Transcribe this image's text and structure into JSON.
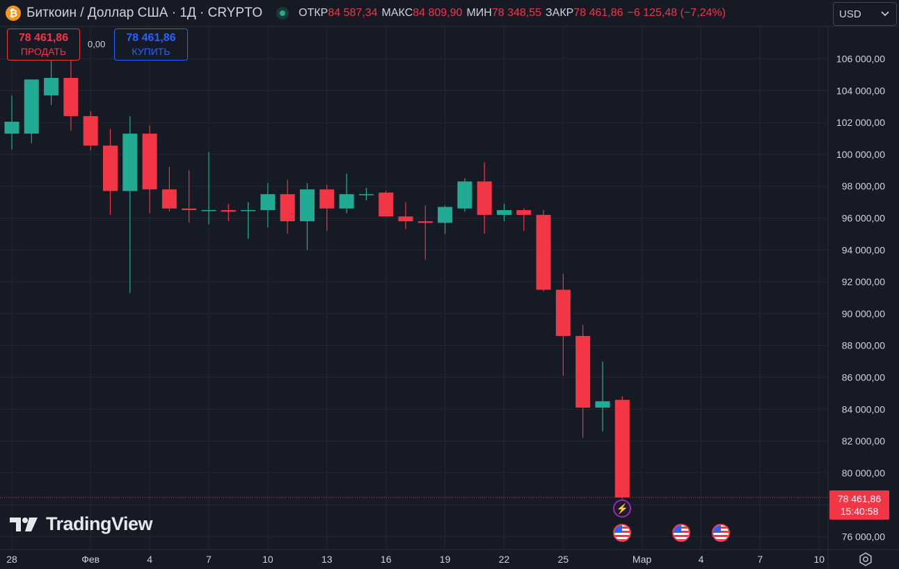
{
  "header": {
    "logo_symbol": "₿",
    "title": "Биткоин / Доллар США · 1Д · CRYPTO",
    "ohlc": {
      "open_label": "ОТКР",
      "open": "84 587,34",
      "high_label": "МАКС",
      "high": "84 809,90",
      "low_label": "МИН",
      "low": "78 348,55",
      "close_label": "ЗАКР",
      "close": "78 461,86",
      "change": "−6 125,48 (−7,24%)"
    }
  },
  "trade": {
    "sell_price": "78 461,86",
    "sell_label": "ПРОДАТЬ",
    "spread": "0,00",
    "buy_price": "78 461,86",
    "buy_label": "КУПИТЬ"
  },
  "currency": {
    "selected": "USD"
  },
  "last_price": {
    "price": "78 461,86",
    "countdown": "15:40:58"
  },
  "watermark": "TradingView",
  "colors": {
    "up": "#22ab94",
    "down": "#f23645",
    "background": "#161a25",
    "grid": "#232734",
    "text": "#d1d4dc"
  },
  "icons": [
    "bitcoin-logo-icon",
    "chevron-down-icon",
    "lightning-icon",
    "us-flag-icon",
    "settings-icon"
  ],
  "chart_data": {
    "type": "candlestick",
    "interval": "1D",
    "ylim": [
      75000,
      107000
    ],
    "y_ticks": [
      76000,
      78000,
      80000,
      82000,
      84000,
      86000,
      88000,
      90000,
      92000,
      94000,
      96000,
      98000,
      100000,
      102000,
      104000,
      106000
    ],
    "y_tick_labels": [
      "76 000,00",
      "78 000,00",
      "80 000,00",
      "82 000,00",
      "84 000,00",
      "86 000,00",
      "88 000,00",
      "90 000,00",
      "92 000,00",
      "94 000,00",
      "96 000,00",
      "98 000,00",
      "100 000,00",
      "102 000,00",
      "104 000,00",
      "106 000,00"
    ],
    "x_ticks": [
      "28",
      "Фев",
      "4",
      "7",
      "10",
      "13",
      "16",
      "19",
      "22",
      "25",
      "Мар",
      "4",
      "7",
      "10"
    ],
    "x_tick_days": [
      0,
      4,
      7,
      10,
      13,
      16,
      19,
      22,
      25,
      28,
      32,
      35,
      38,
      41
    ],
    "last_price": 78461.86,
    "candles": [
      {
        "day": 0,
        "o": 101300,
        "h": 103700,
        "l": 100300,
        "c": 102050
      },
      {
        "day": 1,
        "o": 101300,
        "h": 104700,
        "l": 100700,
        "c": 104700
      },
      {
        "day": 2,
        "o": 103700,
        "h": 106100,
        "l": 103100,
        "c": 104800
      },
      {
        "day": 3,
        "o": 104800,
        "h": 105900,
        "l": 101500,
        "c": 102400
      },
      {
        "day": 4,
        "o": 102400,
        "h": 102700,
        "l": 100250,
        "c": 100550
      },
      {
        "day": 5,
        "o": 100550,
        "h": 101600,
        "l": 96200,
        "c": 97700
      },
      {
        "day": 6,
        "o": 97700,
        "h": 102400,
        "l": 91300,
        "c": 101300
      },
      {
        "day": 7,
        "o": 101300,
        "h": 101800,
        "l": 96300,
        "c": 97800
      },
      {
        "day": 8,
        "o": 97800,
        "h": 99200,
        "l": 96400,
        "c": 96600
      },
      {
        "day": 9,
        "o": 96600,
        "h": 99000,
        "l": 95700,
        "c": 96500
      },
      {
        "day": 10,
        "o": 96500,
        "h": 100150,
        "l": 95600,
        "c": 96500
      },
      {
        "day": 11,
        "o": 96500,
        "h": 96900,
        "l": 95800,
        "c": 96400
      },
      {
        "day": 12,
        "o": 96500,
        "h": 97000,
        "l": 94700,
        "c": 96500
      },
      {
        "day": 13,
        "o": 96500,
        "h": 98200,
        "l": 95400,
        "c": 97500
      },
      {
        "day": 14,
        "o": 97500,
        "h": 98400,
        "l": 95000,
        "c": 95800
      },
      {
        "day": 15,
        "o": 95800,
        "h": 98200,
        "l": 94000,
        "c": 97800
      },
      {
        "day": 16,
        "o": 97800,
        "h": 98100,
        "l": 95200,
        "c": 96600
      },
      {
        "day": 17,
        "o": 96600,
        "h": 98800,
        "l": 96300,
        "c": 97500
      },
      {
        "day": 18,
        "o": 97500,
        "h": 97900,
        "l": 97100,
        "c": 97500
      },
      {
        "day": 19,
        "o": 97600,
        "h": 97700,
        "l": 96100,
        "c": 96100
      },
      {
        "day": 20,
        "o": 96100,
        "h": 97000,
        "l": 95300,
        "c": 95800
      },
      {
        "day": 21,
        "o": 95800,
        "h": 96800,
        "l": 93400,
        "c": 95700
      },
      {
        "day": 22,
        "o": 95700,
        "h": 96800,
        "l": 95000,
        "c": 96700
      },
      {
        "day": 23,
        "o": 96600,
        "h": 98500,
        "l": 96400,
        "c": 98300
      },
      {
        "day": 24,
        "o": 98300,
        "h": 99500,
        "l": 95000,
        "c": 96200
      },
      {
        "day": 25,
        "o": 96200,
        "h": 96900,
        "l": 95800,
        "c": 96500
      },
      {
        "day": 26,
        "o": 96500,
        "h": 96600,
        "l": 95200,
        "c": 96200
      },
      {
        "day": 27,
        "o": 96200,
        "h": 96500,
        "l": 91400,
        "c": 91500
      },
      {
        "day": 28,
        "o": 91500,
        "h": 92500,
        "l": 86100,
        "c": 88600
      },
      {
        "day": 29,
        "o": 88600,
        "h": 89300,
        "l": 82200,
        "c": 84100
      },
      {
        "day": 30,
        "o": 84100,
        "h": 87000,
        "l": 82600,
        "c": 84500
      },
      {
        "day": 31,
        "o": 84587.34,
        "h": 84809.9,
        "l": 78348.55,
        "c": 78461.86
      }
    ],
    "event_markers": [
      {
        "day": 31,
        "type": "lightning-icon"
      },
      {
        "day": 31,
        "type": "us-flag-icon"
      },
      {
        "day": 34,
        "type": "us-flag-icon"
      },
      {
        "day": 36,
        "type": "us-flag-icon"
      }
    ]
  }
}
